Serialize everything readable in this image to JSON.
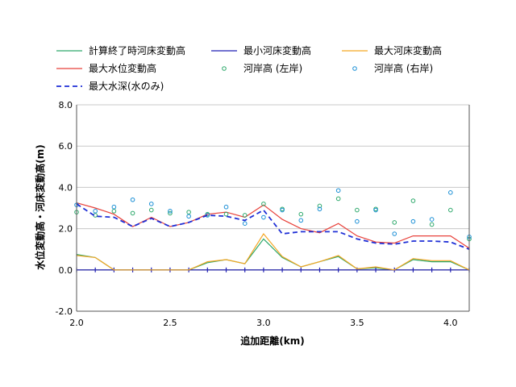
{
  "chart_data": {
    "type": "line",
    "xlabel": "追加距離(km)",
    "ylabel": "水位変動高・河床変動高(m)",
    "xlim": [
      2.0,
      4.1
    ],
    "ylim": [
      -2.0,
      8.0
    ],
    "xticks": [
      "2.0",
      "2.5",
      "3.0",
      "3.5",
      "4.0"
    ],
    "yticks": [
      "-2.0",
      "0.0",
      "2.0",
      "4.0",
      "6.0",
      "8.0"
    ],
    "grid": "horizontal",
    "legend_position": "top",
    "series": [
      {
        "name": "計算終了時河床変動高",
        "style": "line",
        "color": "#2ca86a",
        "x": [
          2.0,
          2.1,
          2.2,
          2.3,
          2.4,
          2.5,
          2.6,
          2.7,
          2.8,
          2.9,
          3.0,
          3.1,
          3.2,
          3.3,
          3.4,
          3.5,
          3.6,
          3.7,
          3.8,
          3.9,
          4.0,
          4.1
        ],
        "y": [
          0.75,
          0.6,
          0.0,
          0.0,
          0.0,
          0.0,
          0.0,
          0.35,
          0.5,
          0.3,
          1.5,
          0.6,
          0.15,
          0.4,
          0.65,
          0.05,
          0.1,
          0.0,
          0.5,
          0.4,
          0.4,
          0.0
        ]
      },
      {
        "name": "最小河床変動高",
        "style": "line",
        "color": "#1f1fb4",
        "x": [
          2.0,
          2.1,
          2.2,
          2.3,
          2.4,
          2.5,
          2.6,
          2.7,
          2.8,
          2.9,
          3.0,
          3.1,
          3.2,
          3.3,
          3.4,
          3.5,
          3.6,
          3.7,
          3.8,
          3.9,
          4.0,
          4.1
        ],
        "y": [
          0,
          0,
          0,
          0,
          0,
          0,
          0,
          0,
          0,
          0,
          0,
          0,
          0,
          0,
          0,
          0,
          0,
          0,
          0,
          0,
          0,
          0
        ]
      },
      {
        "name": "最大河床変動高",
        "style": "line",
        "color": "#f5a623",
        "x": [
          2.0,
          2.1,
          2.2,
          2.3,
          2.4,
          2.5,
          2.6,
          2.7,
          2.8,
          2.9,
          3.0,
          3.1,
          3.2,
          3.3,
          3.4,
          3.5,
          3.6,
          3.7,
          3.8,
          3.9,
          4.0,
          4.1
        ],
        "y": [
          0.7,
          0.6,
          0.0,
          0.0,
          0.0,
          0.0,
          0.0,
          0.4,
          0.5,
          0.3,
          1.75,
          0.65,
          0.15,
          0.4,
          0.7,
          0.05,
          0.15,
          0.0,
          0.55,
          0.45,
          0.45,
          0.0
        ]
      },
      {
        "name": "最大水位変動高",
        "style": "line",
        "color": "#e8413a",
        "x": [
          2.0,
          2.1,
          2.2,
          2.3,
          2.4,
          2.5,
          2.6,
          2.7,
          2.8,
          2.9,
          3.0,
          3.1,
          3.2,
          3.3,
          3.4,
          3.5,
          3.6,
          3.7,
          3.8,
          3.9,
          4.0,
          4.1
        ],
        "y": [
          3.25,
          3.0,
          2.7,
          2.1,
          2.55,
          2.1,
          2.3,
          2.7,
          2.8,
          2.55,
          3.15,
          2.45,
          2.0,
          1.8,
          2.25,
          1.65,
          1.35,
          1.3,
          1.65,
          1.65,
          1.65,
          1.05
        ]
      },
      {
        "name": "河岸高 (左岸)",
        "style": "marker",
        "color": "#2ca86a",
        "x": [
          2.0,
          2.1,
          2.2,
          2.3,
          2.4,
          2.5,
          2.6,
          2.7,
          2.8,
          2.9,
          3.0,
          3.1,
          3.2,
          3.3,
          3.4,
          3.5,
          3.6,
          3.7,
          3.8,
          3.9,
          4.0,
          4.1
        ],
        "y": [
          2.8,
          2.65,
          2.85,
          2.75,
          2.9,
          2.75,
          2.8,
          2.7,
          2.7,
          2.65,
          3.2,
          2.95,
          2.7,
          3.1,
          3.45,
          2.9,
          2.95,
          2.3,
          3.35,
          2.2,
          2.9,
          1.5
        ]
      },
      {
        "name": "河岸高 (右岸)",
        "style": "marker",
        "color": "#1a8fd6",
        "x": [
          2.0,
          2.1,
          2.2,
          2.3,
          2.4,
          2.5,
          2.6,
          2.7,
          2.8,
          2.9,
          3.0,
          3.1,
          3.2,
          3.3,
          3.4,
          3.5,
          3.6,
          3.7,
          3.8,
          3.9,
          4.0,
          4.1
        ],
        "y": [
          3.15,
          2.85,
          3.05,
          3.4,
          3.2,
          2.85,
          2.6,
          2.65,
          3.05,
          2.25,
          2.55,
          2.9,
          2.4,
          2.95,
          3.85,
          2.35,
          2.9,
          1.75,
          2.35,
          2.45,
          3.75,
          1.6
        ]
      },
      {
        "name": "最大水深(水のみ)",
        "style": "dashed",
        "color": "#1f2fd6",
        "x": [
          2.0,
          2.1,
          2.2,
          2.3,
          2.4,
          2.5,
          2.6,
          2.7,
          2.8,
          2.9,
          3.0,
          3.1,
          3.2,
          3.3,
          3.4,
          3.5,
          3.6,
          3.7,
          3.8,
          3.9,
          4.0,
          4.1
        ],
        "y": [
          3.2,
          2.6,
          2.55,
          2.1,
          2.5,
          2.1,
          2.3,
          2.65,
          2.6,
          2.4,
          2.9,
          1.75,
          1.85,
          1.85,
          1.85,
          1.5,
          1.3,
          1.25,
          1.4,
          1.4,
          1.35,
          1.0
        ]
      }
    ]
  }
}
